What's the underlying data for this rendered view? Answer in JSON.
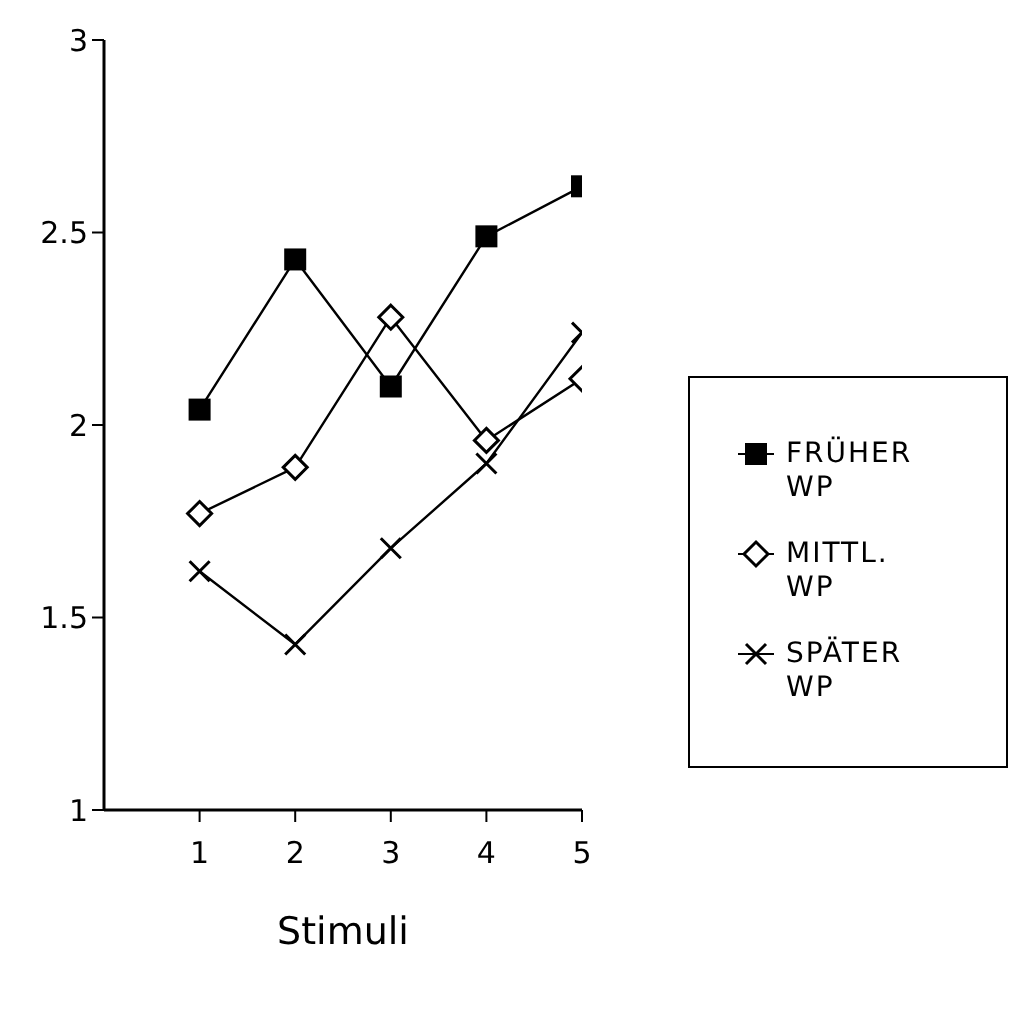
{
  "chart_data": {
    "type": "line",
    "xlabel": "Stimuli",
    "x": [
      1,
      2,
      3,
      4,
      5
    ],
    "xlim": [
      0,
      5
    ],
    "xticks": [
      1,
      2,
      3,
      4,
      5
    ],
    "ylim": [
      1,
      3
    ],
    "yticks": [
      1,
      1.5,
      2,
      2.5,
      3
    ],
    "grid": false,
    "legend": "right",
    "line_style": "solid",
    "series": [
      {
        "name": "FRÜHER WP",
        "color": "#000000",
        "marker": "square",
        "values": [
          2.04,
          2.43,
          2.1,
          2.49,
          2.62
        ]
      },
      {
        "name": "MITTL. WP",
        "color": "#000000",
        "marker": "diamond",
        "values": [
          1.77,
          1.89,
          2.28,
          1.96,
          2.12
        ]
      },
      {
        "name": "SPÄTER WP",
        "color": "#000000",
        "marker": "cross",
        "values": [
          1.62,
          1.43,
          1.68,
          1.9,
          2.24
        ]
      }
    ]
  }
}
